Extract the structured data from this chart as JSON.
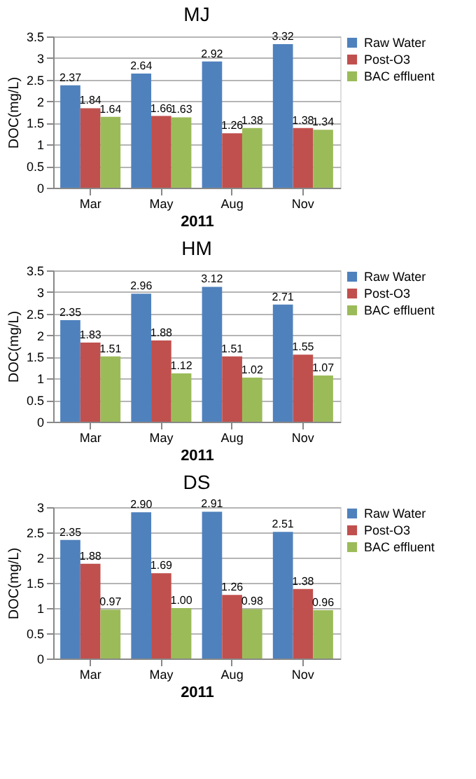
{
  "chart_data": [
    {
      "type": "bar",
      "title": "MJ",
      "xlabel": "2011",
      "ylabel": "DOC(mg/L)",
      "categories": [
        "Mar",
        "May",
        "Aug",
        "Nov"
      ],
      "ylim": [
        0,
        3.5
      ],
      "yticks": [
        0,
        0.5,
        1,
        1.5,
        2,
        2.5,
        3,
        3.5
      ],
      "grid": "y",
      "legend": "right",
      "data_labels": true,
      "series": [
        {
          "name": "Raw Water",
          "color": "#4f81bd",
          "values": [
            2.37,
            2.64,
            2.92,
            3.32
          ]
        },
        {
          "name": "Post-O3",
          "color": "#c0504d",
          "values": [
            1.84,
            1.66,
            1.26,
            1.38
          ]
        },
        {
          "name": "BAC effluent",
          "color": "#9bbb59",
          "values": [
            1.64,
            1.63,
            1.38,
            1.34
          ]
        }
      ]
    },
    {
      "type": "bar",
      "title": "HM",
      "xlabel": "2011",
      "ylabel": "DOC(mg/L)",
      "categories": [
        "Mar",
        "May",
        "Aug",
        "Nov"
      ],
      "ylim": [
        0,
        3.5
      ],
      "yticks": [
        0,
        0.5,
        1,
        1.5,
        2,
        2.5,
        3,
        3.5
      ],
      "grid": "y",
      "legend": "right",
      "data_labels": true,
      "series": [
        {
          "name": "Raw Water",
          "color": "#4f81bd",
          "values": [
            2.35,
            2.96,
            3.12,
            2.71
          ]
        },
        {
          "name": "Post-O3",
          "color": "#c0504d",
          "values": [
            1.83,
            1.88,
            1.51,
            1.55
          ]
        },
        {
          "name": "BAC effluent",
          "color": "#9bbb59",
          "values": [
            1.51,
            1.12,
            1.02,
            1.07
          ]
        }
      ]
    },
    {
      "type": "bar",
      "title": "DS",
      "xlabel": "2011",
      "ylabel": "DOC(mg/L)",
      "categories": [
        "Mar",
        "May",
        "Aug",
        "Nov"
      ],
      "ylim": [
        0,
        3
      ],
      "yticks": [
        0,
        0.5,
        1,
        1.5,
        2,
        2.5,
        3
      ],
      "grid": "y",
      "legend": "right",
      "series": [
        {
          "name": "Raw Water",
          "color": "#4f81bd",
          "values": [
            2.35,
            2.9,
            2.91,
            2.51
          ],
          "value_labels": [
            "2.35",
            "2.90",
            "2.91",
            "2.51"
          ]
        },
        {
          "name": "Post-O3",
          "color": "#c0504d",
          "values": [
            1.88,
            1.69,
            1.26,
            1.38
          ],
          "value_labels": [
            "1.88",
            "1.69",
            "1.26",
            "1.38"
          ]
        },
        {
          "name": "BAC effluent",
          "color": "#9bbb59",
          "values": [
            0.97,
            1.0,
            0.98,
            0.96
          ],
          "value_labels": [
            "0.97",
            "1.00",
            "0.98",
            "0.96"
          ]
        }
      ]
    }
  ]
}
